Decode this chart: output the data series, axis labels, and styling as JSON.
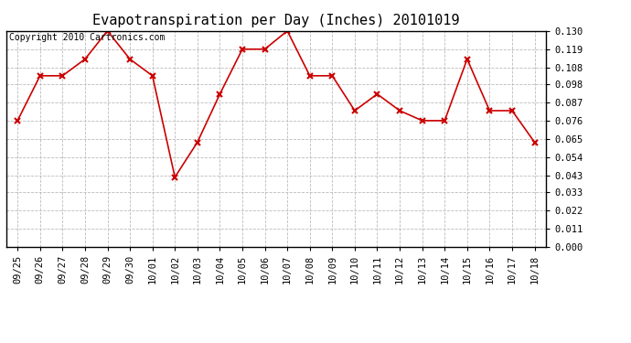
{
  "title": "Evapotranspiration per Day (Inches) 20101019",
  "copyright_text": "Copyright 2010 Cartronics.com",
  "x_labels": [
    "09/25",
    "09/26",
    "09/27",
    "09/28",
    "09/29",
    "09/30",
    "10/01",
    "10/02",
    "10/03",
    "10/04",
    "10/05",
    "10/06",
    "10/07",
    "10/08",
    "10/09",
    "10/10",
    "10/11",
    "10/12",
    "10/13",
    "10/14",
    "10/15",
    "10/16",
    "10/17",
    "10/18"
  ],
  "y_values": [
    0.076,
    0.103,
    0.103,
    0.113,
    0.13,
    0.113,
    0.103,
    0.042,
    0.063,
    0.092,
    0.119,
    0.119,
    0.13,
    0.103,
    0.103,
    0.082,
    0.092,
    0.082,
    0.076,
    0.076,
    0.113,
    0.082,
    0.082,
    0.063
  ],
  "y_ticks": [
    0.0,
    0.011,
    0.022,
    0.033,
    0.043,
    0.054,
    0.065,
    0.076,
    0.087,
    0.098,
    0.108,
    0.119,
    0.13
  ],
  "y_min": 0.0,
  "y_max": 0.13,
  "line_color": "#cc0000",
  "marker": "x",
  "marker_color": "#cc0000",
  "background_color": "#ffffff",
  "grid_color": "#bbbbbb",
  "title_fontsize": 11,
  "copyright_fontsize": 7,
  "tick_fontsize": 7.5
}
